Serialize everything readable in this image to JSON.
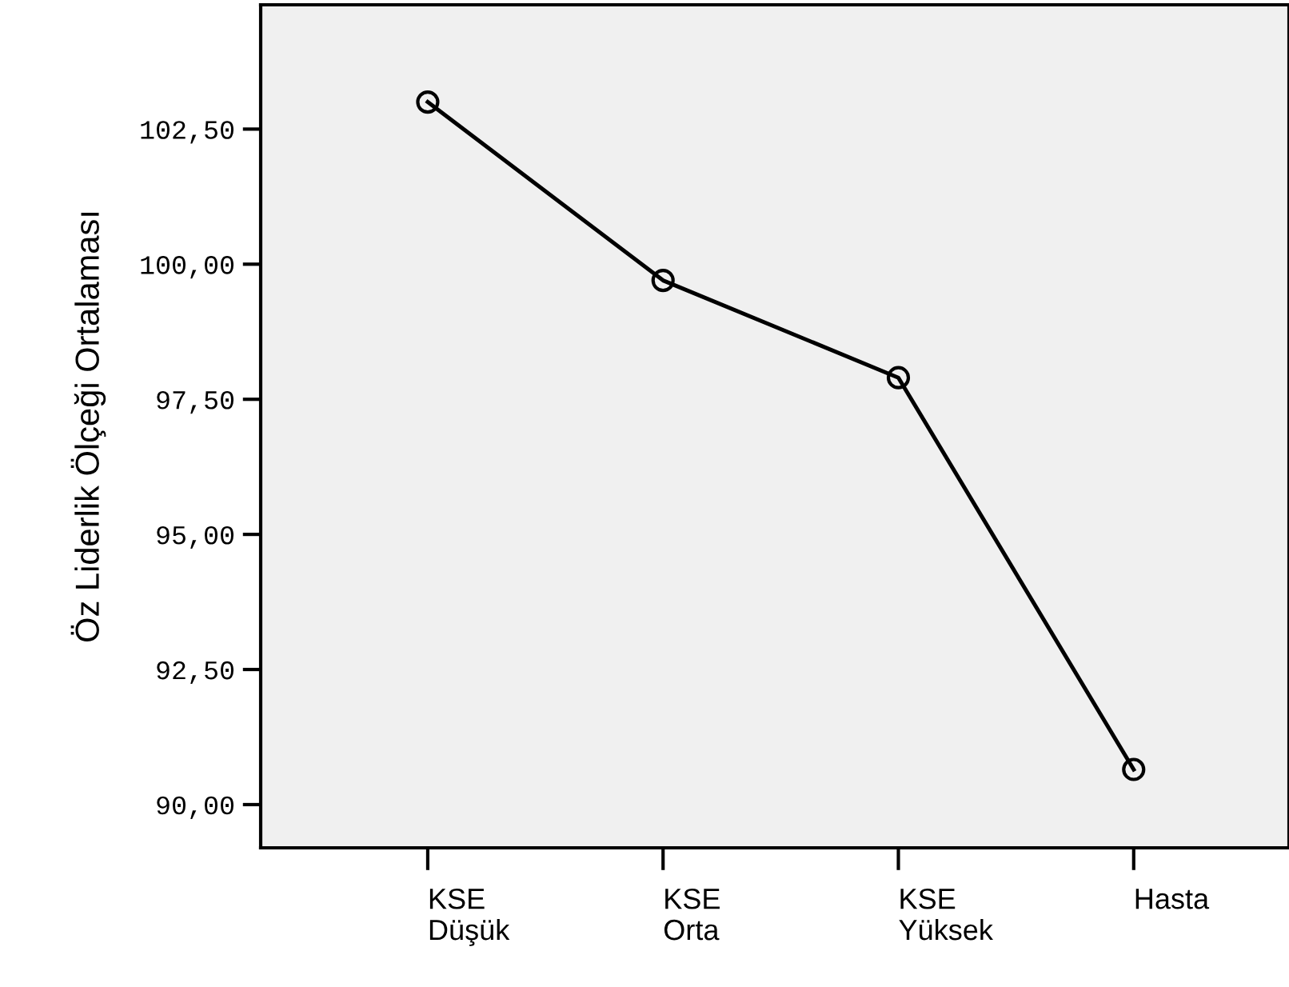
{
  "chart_data": {
    "type": "line",
    "ylabel": "Öz Liderlik Ölçeği Ortalaması",
    "categories": [
      "KSE\nDüşük",
      "KSE\nOrta",
      "KSE\nYüksek",
      "Hasta"
    ],
    "series": [
      {
        "color": "#000000",
        "values": [
          103.0,
          99.7,
          97.9,
          90.65
        ]
      }
    ],
    "ylim": [
      89.2,
      104.8
    ],
    "yticks": [
      {
        "value": 90,
        "label": "90,00"
      },
      {
        "value": 92.5,
        "label": "92,50"
      },
      {
        "value": 95,
        "label": "95,00"
      },
      {
        "value": 97.5,
        "label": "97,50"
      },
      {
        "value": 100,
        "label": "100,00"
      },
      {
        "value": 102.5,
        "label": "102,50"
      }
    ],
    "marker": "circle",
    "line_style": "solid",
    "grid": false,
    "legend": false
  }
}
